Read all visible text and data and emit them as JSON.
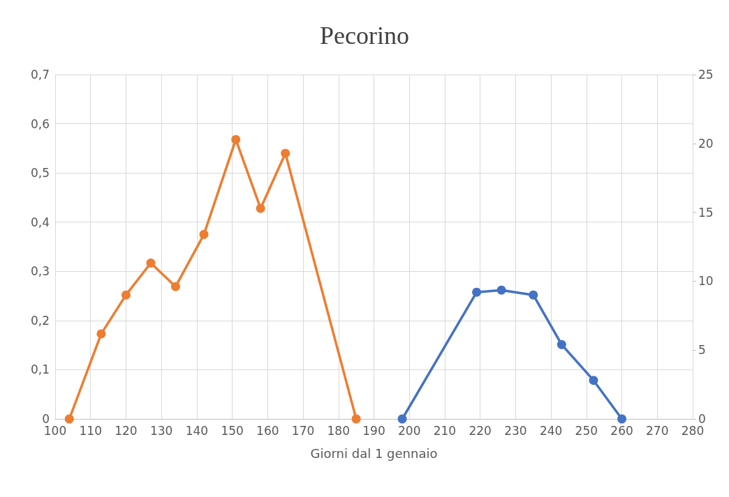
{
  "chart_data": {
    "type": "line",
    "title": "Pecorino",
    "xlabel": "Giorni dal 1 gennaio",
    "xlim": [
      100,
      280
    ],
    "xticks": [
      100,
      110,
      120,
      130,
      140,
      150,
      160,
      170,
      180,
      190,
      200,
      210,
      220,
      230,
      240,
      250,
      260,
      270,
      280
    ],
    "ylim": [
      0,
      0.7
    ],
    "yticks": [
      0,
      {
        "value": 0.1,
        "label": "0,1"
      },
      {
        "value": 0.2,
        "label": "0,2"
      },
      {
        "value": 0.3,
        "label": "0,3"
      },
      {
        "value": 0.4,
        "label": "0,4"
      },
      {
        "value": 0.5,
        "label": "0,5"
      },
      {
        "value": 0.6,
        "label": "0,6"
      },
      {
        "value": 0.7,
        "label": "0,7"
      }
    ],
    "y2lim": [
      0,
      25
    ],
    "y2ticks": [
      0,
      5,
      10,
      15,
      20,
      25
    ],
    "grid": true,
    "marker": "circle",
    "line_style": "solid",
    "series": [
      {
        "color": "#ed7d31",
        "x": [
          104,
          113,
          120,
          127,
          134,
          142,
          151,
          158,
          165,
          185
        ],
        "values": [
          0,
          0.173,
          0.252,
          0.317,
          0.269,
          0.375,
          0.568,
          0.428,
          0.54,
          0
        ]
      },
      {
        "color": "#4472c4",
        "axis": "y2",
        "x": [
          198,
          219,
          226,
          235,
          243,
          252,
          260
        ],
        "values": [
          0,
          9.2,
          9.35,
          9.0,
          5.4,
          2.8,
          0
        ]
      }
    ]
  }
}
